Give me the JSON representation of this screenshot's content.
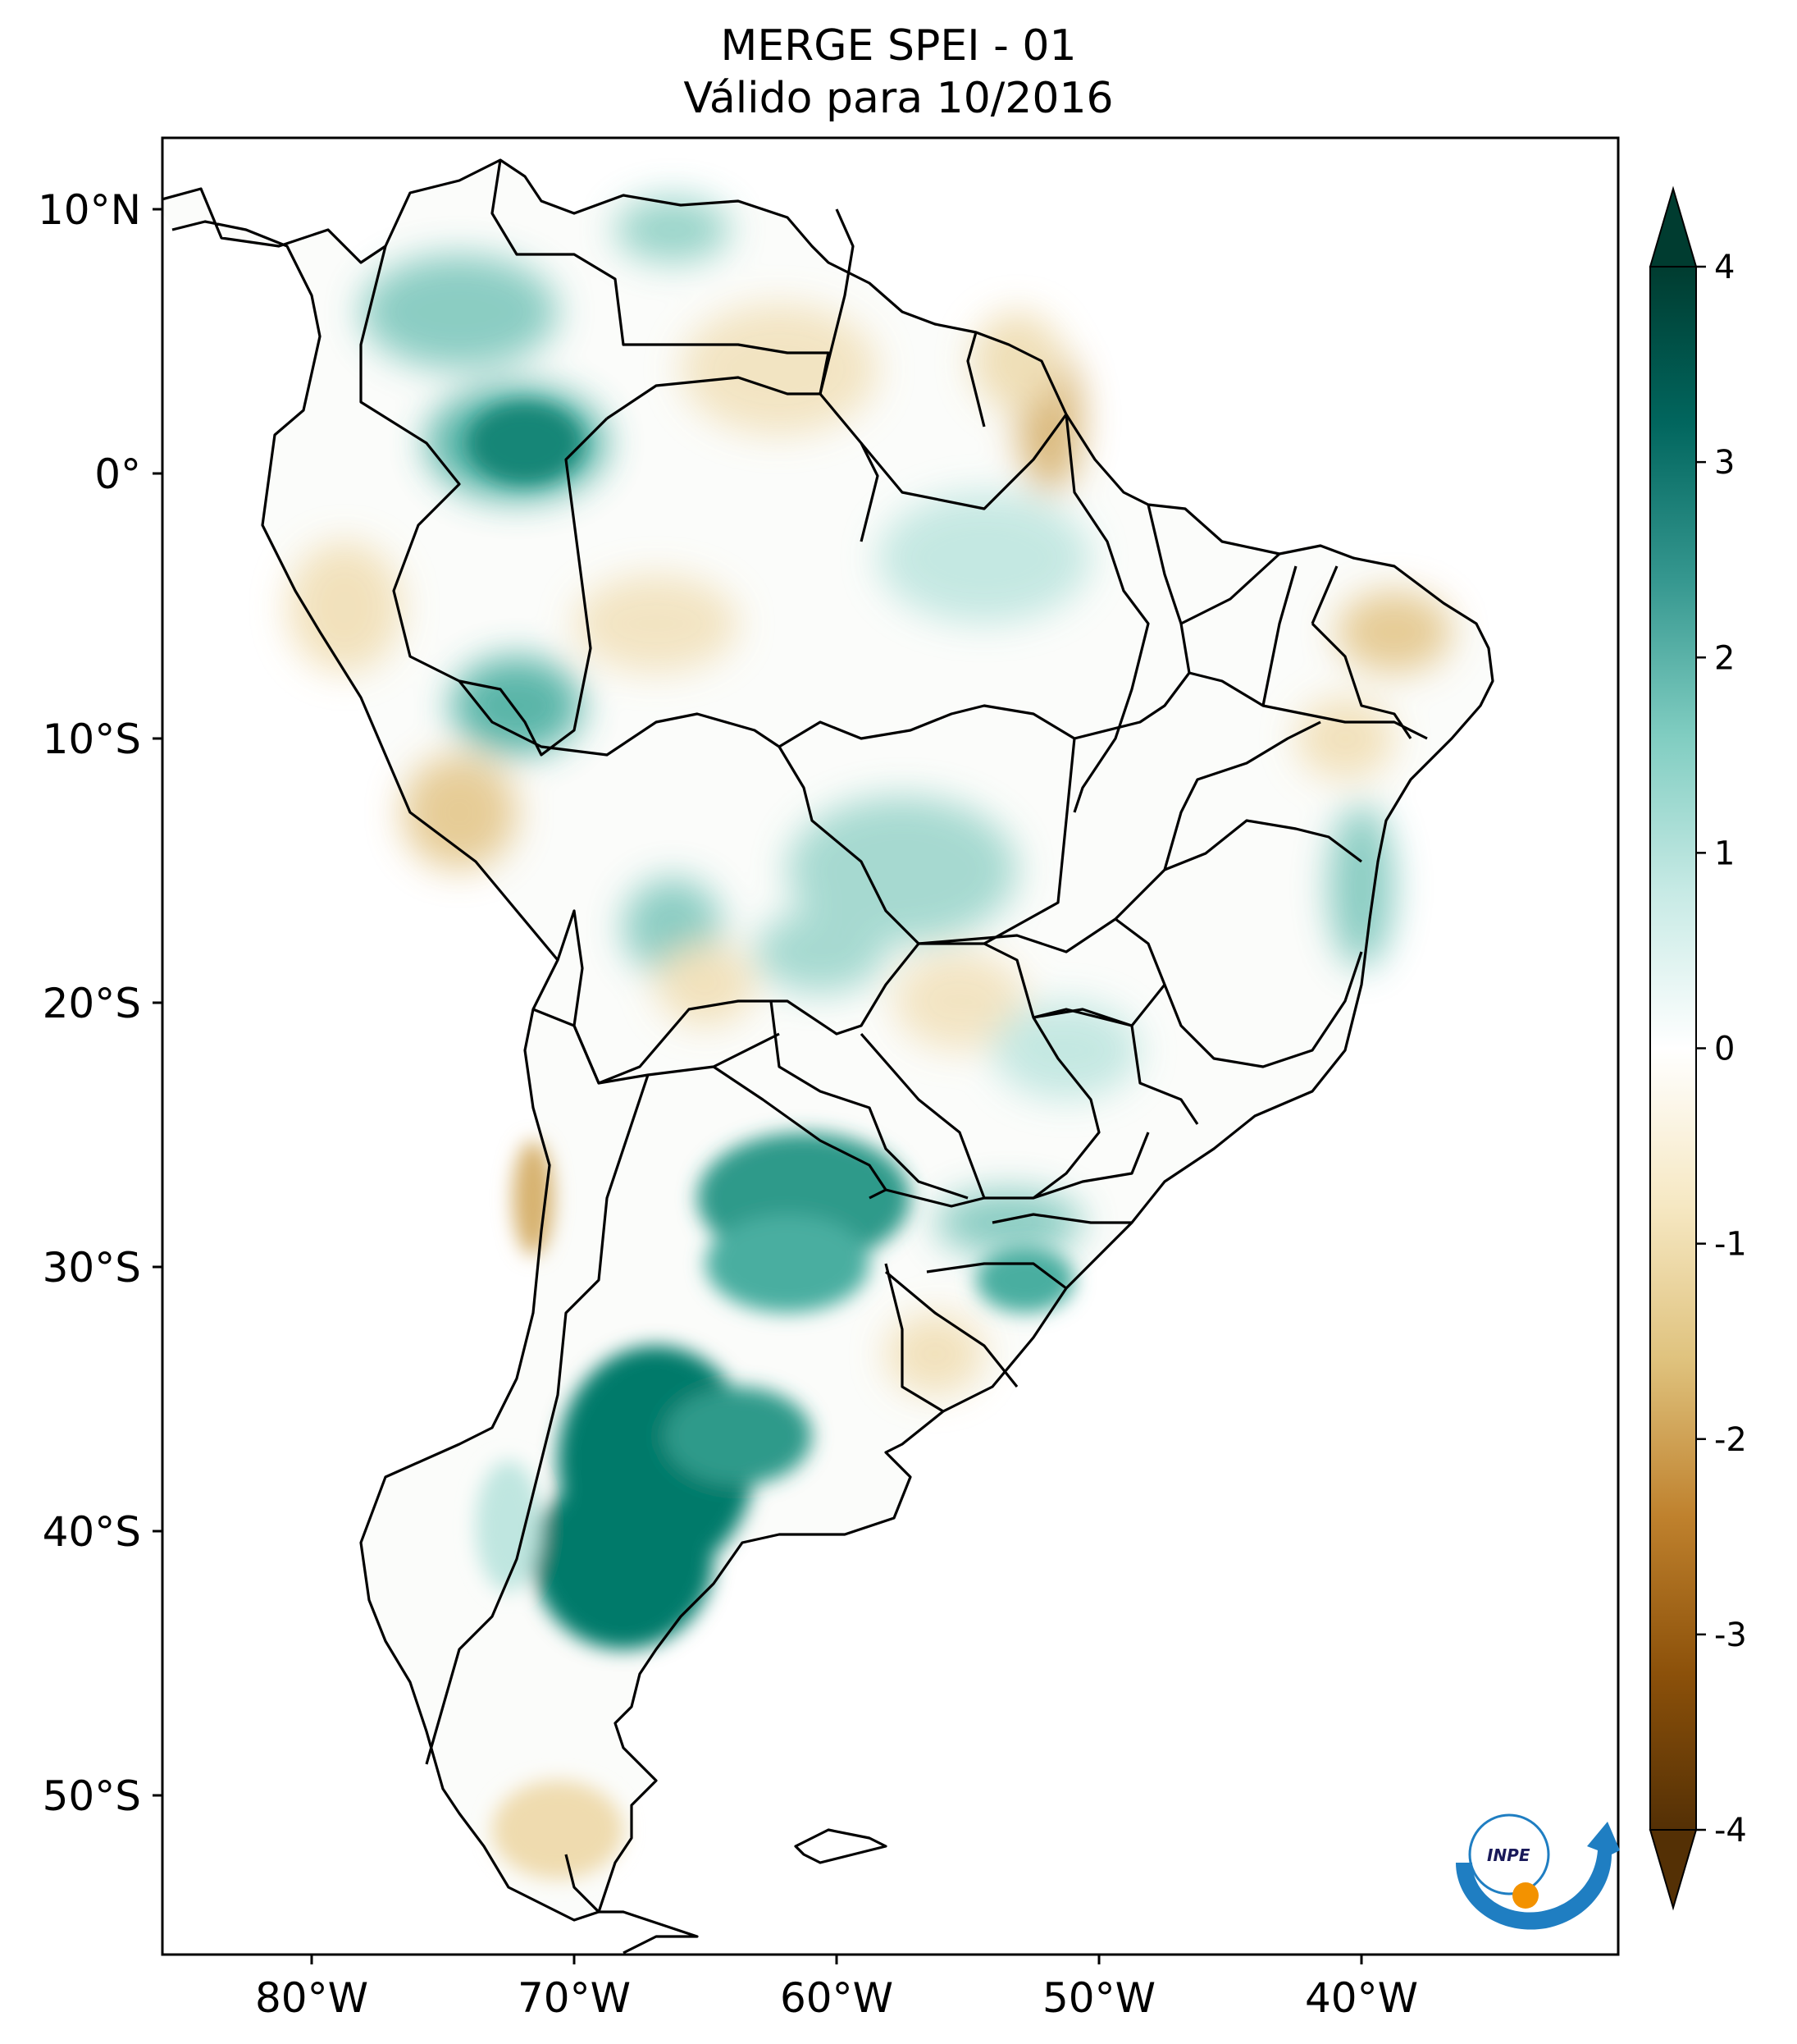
{
  "title": {
    "line1": "MERGE   SPEI - 01",
    "line2": "Válido para 10/2016"
  },
  "map": {
    "lon_ticks": [
      "80°W",
      "70°W",
      "60°W",
      "50°W",
      "40°W"
    ],
    "lat_ticks": [
      "10°N",
      "0°",
      "10°S",
      "20°S",
      "30°S",
      "40°S",
      "50°S"
    ]
  },
  "colorbar": {
    "tick_labels": [
      "4",
      "3",
      "2",
      "1",
      "0",
      "-1",
      "-2",
      "-3",
      "-4"
    ],
    "min": -4,
    "max": 4,
    "extend": "both",
    "colors": [
      "#543005",
      "#8c510a",
      "#bf812d",
      "#dfc27d",
      "#f6e8c3",
      "#ffffff",
      "#c7eae5",
      "#80cdc1",
      "#35978f",
      "#01665e",
      "#003c30"
    ]
  },
  "logo": {
    "text": "INPE"
  },
  "colors": {
    "strong_wet": "#017a6a",
    "moderate_wet": "#52b5a8",
    "light_wet": "#bfe6e0",
    "light_dry": "#f1dfb6",
    "moderate_dry": "#d7b270",
    "logo_blue": "#1f7ec2",
    "logo_orange": "#f39200"
  }
}
